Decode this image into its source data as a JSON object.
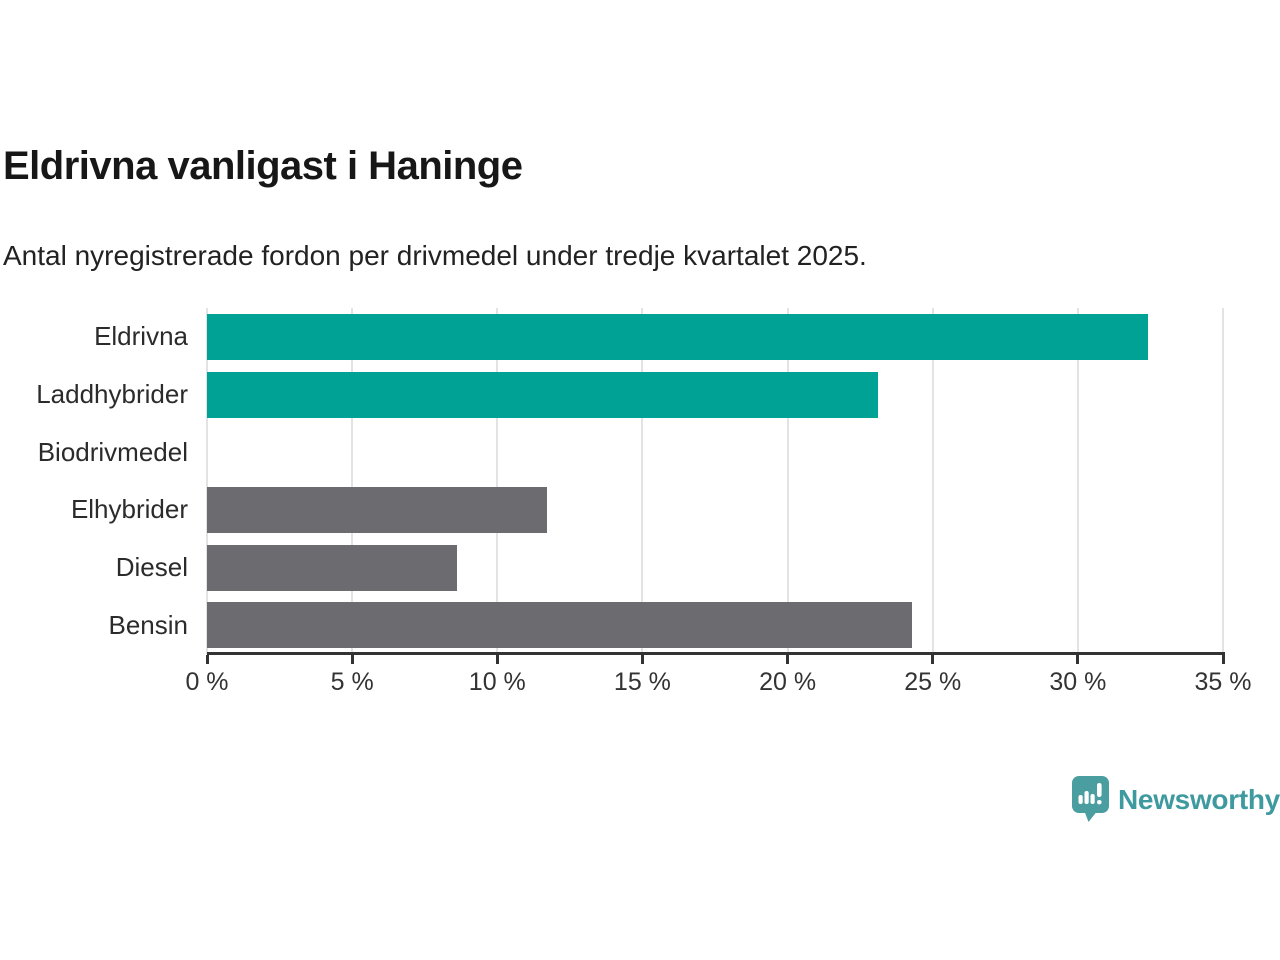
{
  "header": {
    "title": "Eldrivna vanligast i Haninge",
    "subtitle": "Antal nyregistrerade fordon per drivmedel under tredje kvartalet 2025."
  },
  "chart_data": {
    "type": "bar",
    "orientation": "horizontal",
    "title": "Eldrivna vanligast i Haninge",
    "subtitle": "Antal nyregistrerade fordon per drivmedel under tredje kvartalet 2025.",
    "categories": [
      "Eldrivna",
      "Laddhybrider",
      "Biodrivmedel",
      "Elhybrider",
      "Diesel",
      "Bensin"
    ],
    "values": [
      32.4,
      23.1,
      0,
      11.7,
      8.6,
      24.3
    ],
    "unit": "%",
    "bar_colors": [
      "#00a296",
      "#00a296",
      "#6c6c70",
      "#6c6c70",
      "#6c6c70",
      "#6c6c70"
    ],
    "highlight_color": "#00a296",
    "default_color": "#6c6c70",
    "xlim": [
      0,
      35
    ],
    "x_ticks": [
      0,
      5,
      10,
      15,
      20,
      25,
      30,
      35
    ],
    "x_tick_labels": [
      "0 %",
      "5 %",
      "10 %",
      "15 %",
      "20 %",
      "25 %",
      "30 %",
      "35 %"
    ],
    "grid": "vertical",
    "legend": "none"
  },
  "colors": {
    "grid_line": "#e3e3e5",
    "axis_line": "#333333",
    "label_text": "#2b2b2b",
    "tick_text": "#333333"
  },
  "branding": {
    "wordmark": "Newsworthy",
    "wordmark_color": "#3f9aa0",
    "icon_color": "#4a9ea0",
    "icon_glyph_color": "#ffffff",
    "icon": "bar-chart-speech-bubble-icon"
  }
}
